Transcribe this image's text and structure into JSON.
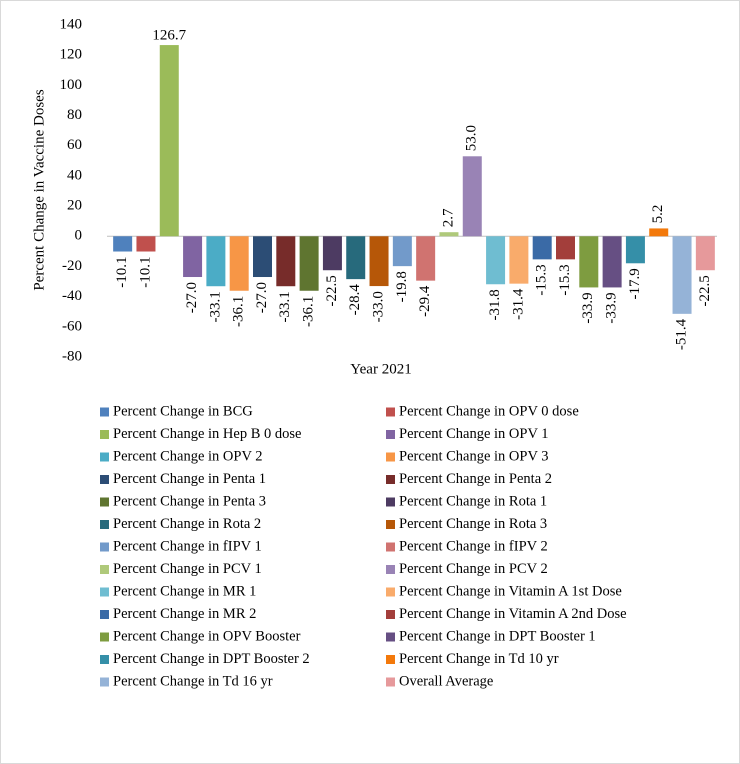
{
  "chart_data": {
    "type": "bar",
    "y_label": "Percent Change in Vaccine Doses",
    "x_label": "Year 2021",
    "ylim": [
      -80,
      140
    ],
    "yticks": [
      -80,
      -60,
      -40,
      -20,
      0,
      20,
      40,
      60,
      80,
      100,
      120,
      140
    ],
    "series": [
      {
        "name": "Percent Change in BCG",
        "color": "#4f81bd",
        "values": [
          -10.1
        ]
      },
      {
        "name": "Percent Change in OPV 0 dose",
        "color": "#c0504d",
        "values": [
          -10.1
        ]
      },
      {
        "name": "Percent Change in Hep B 0 dose",
        "color": "#9bbb59",
        "values": [
          126.7
        ]
      },
      {
        "name": "Percent Change in OPV 1",
        "color": "#8064a2",
        "values": [
          -27
        ],
        "value_labels": [
          "-27.0"
        ]
      },
      {
        "name": "Percent Change in OPV 2",
        "color": "#4bacc6",
        "values": [
          -33.1
        ]
      },
      {
        "name": "Percent Change in OPV 3",
        "color": "#f79646",
        "values": [
          -36.1
        ]
      },
      {
        "name": "Percent Change in Penta 1",
        "color": "#2c4d75",
        "values": [
          -27
        ],
        "value_labels": [
          "-27.0"
        ]
      },
      {
        "name": "Percent Change in Penta 2",
        "color": "#772c2a",
        "values": [
          -33.1
        ]
      },
      {
        "name": "Percent Change in Penta 3",
        "color": "#5f7530",
        "values": [
          -36.1
        ]
      },
      {
        "name": "Percent Change in Rota 1",
        "color": "#4d3b62",
        "values": [
          -22.5
        ]
      },
      {
        "name": "Percent Change in Rota 2",
        "color": "#276a7c",
        "values": [
          -28.4
        ]
      },
      {
        "name": "Percent Change in Rota 3",
        "color": "#b65708",
        "values": [
          -33
        ],
        "value_labels": [
          "-33.0"
        ]
      },
      {
        "name": "Percent Change in fIPV 1",
        "color": "#729aca",
        "values": [
          -19.8
        ]
      },
      {
        "name": "Percent Change in fIPV 2",
        "color": "#d07370",
        "values": [
          -29.4
        ]
      },
      {
        "name": "Percent Change in PCV 1",
        "color": "#afc97a",
        "values": [
          2.7
        ]
      },
      {
        "name": "Percent Change in PCV 2",
        "color": "#9983b5",
        "values": [
          53
        ],
        "value_labels": [
          "53.0"
        ]
      },
      {
        "name": "Percent Change in MR 1",
        "color": "#6fbdd1",
        "values": [
          -31.8
        ]
      },
      {
        "name": "Percent Change in Vitamin A 1st Dose",
        "color": "#f9ab6b",
        "values": [
          -31.4
        ]
      },
      {
        "name": "Percent Change in MR 2",
        "color": "#3a6aa6",
        "values": [
          -15.3
        ]
      },
      {
        "name": "Percent Change in Vitamin A 2nd Dose",
        "color": "#a33e3b",
        "values": [
          -15.3
        ]
      },
      {
        "name": "Percent Change in OPV Booster",
        "color": "#7e9c40",
        "values": [
          -33.9
        ]
      },
      {
        "name": "Percent Change in DPT Booster 1",
        "color": "#664f83",
        "values": [
          -33.9
        ]
      },
      {
        "name": "Percent Change in DPT Booster 2",
        "color": "#358fa8",
        "values": [
          -17.9
        ]
      },
      {
        "name": "Percent Change in Td 10 yr",
        "color": "#f3790b",
        "values": [
          5.2
        ]
      },
      {
        "name": "Percent Change in Td 16 yr",
        "color": "#95b3d7",
        "values": [
          -51.4
        ]
      },
      {
        "name": "Overall Average",
        "color": "#e6999b",
        "values": [
          -22.5
        ]
      }
    ]
  }
}
